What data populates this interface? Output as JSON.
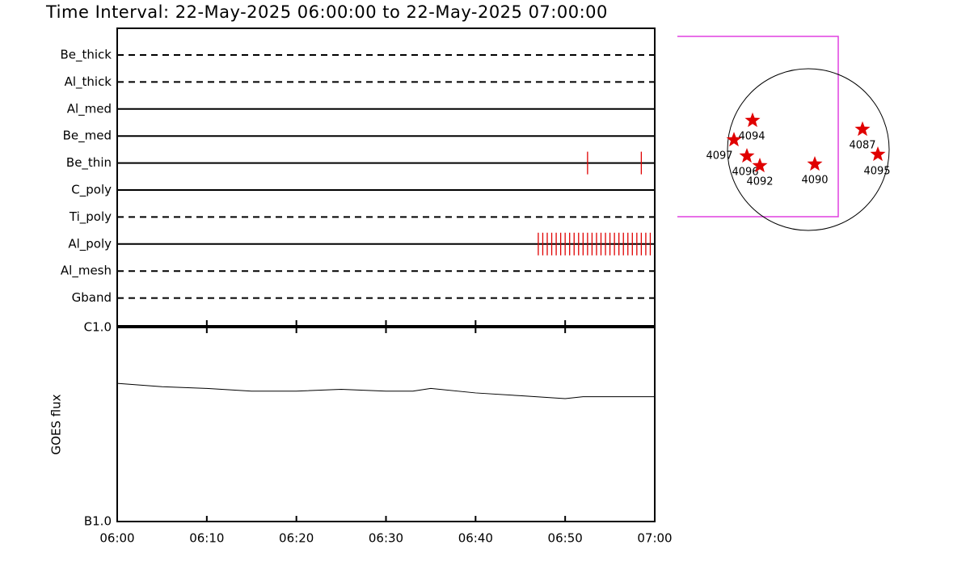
{
  "title": "Time Interval: 22-May-2025 06:00:00 to 22-May-2025 07:00:00",
  "time_axis": {
    "xlim": [
      "06:00",
      "07:00"
    ],
    "xticks": [
      "06:00",
      "06:10",
      "06:20",
      "06:30",
      "06:40",
      "06:50",
      "07:00"
    ]
  },
  "filters": [
    {
      "name": "Be_thick",
      "style": "dashed",
      "obs": []
    },
    {
      "name": "Al_thick",
      "style": "dashed",
      "obs": []
    },
    {
      "name": "Al_med",
      "style": "solid",
      "obs": []
    },
    {
      "name": "Be_med",
      "style": "solid",
      "obs": []
    },
    {
      "name": "Be_thin",
      "style": "solid",
      "obs": [
        "06:52:30",
        "06:58:30"
      ]
    },
    {
      "name": "C_poly",
      "style": "solid",
      "obs": []
    },
    {
      "name": "Ti_poly",
      "style": "dashed",
      "obs": []
    },
    {
      "name": "Al_poly",
      "style": "solid",
      "obs": [
        "06:47:00",
        "06:47:30",
        "06:48:00",
        "06:48:30",
        "06:49:00",
        "06:49:30",
        "06:50:00",
        "06:50:30",
        "06:51:00",
        "06:51:30",
        "06:52:00",
        "06:52:30",
        "06:53:00",
        "06:53:30",
        "06:54:00",
        "06:54:30",
        "06:55:00",
        "06:55:30",
        "06:56:00",
        "06:56:30",
        "06:57:00",
        "06:57:30",
        "06:58:00",
        "06:58:30",
        "06:59:00",
        "06:59:30"
      ]
    },
    {
      "name": "Al_mesh",
      "style": "dashed",
      "obs": []
    },
    {
      "name": "Gband",
      "style": "dashed",
      "obs": []
    }
  ],
  "goes": {
    "ylabel": "GOES flux",
    "log": true,
    "ylim": [
      1e-07,
      1e-06
    ],
    "yticks": [
      {
        "value": 1e-07,
        "label": "B1.0"
      },
      {
        "value": 1e-06,
        "label": "C1.0"
      }
    ],
    "x": [
      "06:00",
      "06:05",
      "06:10",
      "06:15",
      "06:20",
      "06:25",
      "06:30",
      "06:33",
      "06:35",
      "06:40",
      "06:45",
      "06:50",
      "06:52",
      "07:00"
    ],
    "values": [
      5.15e-07,
      4.95e-07,
      4.85e-07,
      4.7e-07,
      4.7e-07,
      4.8e-07,
      4.7e-07,
      4.7e-07,
      4.85e-07,
      4.6e-07,
      4.45e-07,
      4.3e-07,
      4.4e-07,
      4.4e-07
    ]
  },
  "sun_map": {
    "regions": [
      "4094",
      "4097",
      "4096",
      "4092",
      "4090",
      "4087",
      "4095"
    ]
  }
}
